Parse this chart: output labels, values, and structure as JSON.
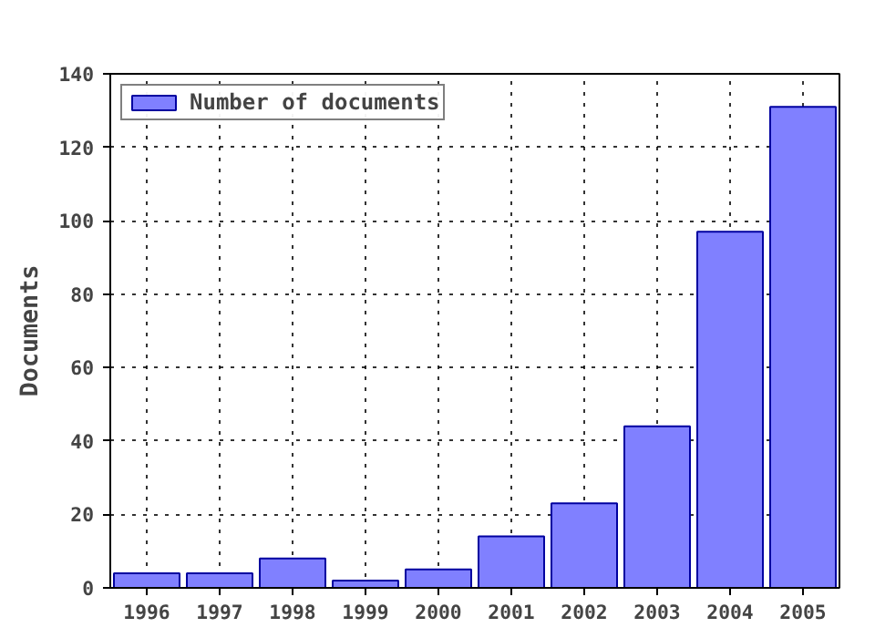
{
  "chart_data": {
    "type": "bar",
    "ylabel": "Documents",
    "x": [
      1996,
      1997,
      1998,
      1999,
      2000,
      2001,
      2002,
      2003,
      2004,
      2005
    ],
    "series": [
      {
        "name": "Number of documents",
        "color": "#8080ff",
        "values": [
          4,
          4,
          8,
          2,
          5,
          14,
          23,
          44,
          97,
          131
        ]
      }
    ],
    "xlim": [
      1995.5,
      2005.5
    ],
    "xticks": [
      1996,
      1997,
      1998,
      1999,
      2000,
      2001,
      2002,
      2003,
      2004,
      2005
    ],
    "ylim": [
      0,
      140
    ],
    "yticks": [
      0,
      20,
      40,
      60,
      80,
      100,
      120,
      140
    ],
    "grid": true,
    "legend": "top left"
  }
}
